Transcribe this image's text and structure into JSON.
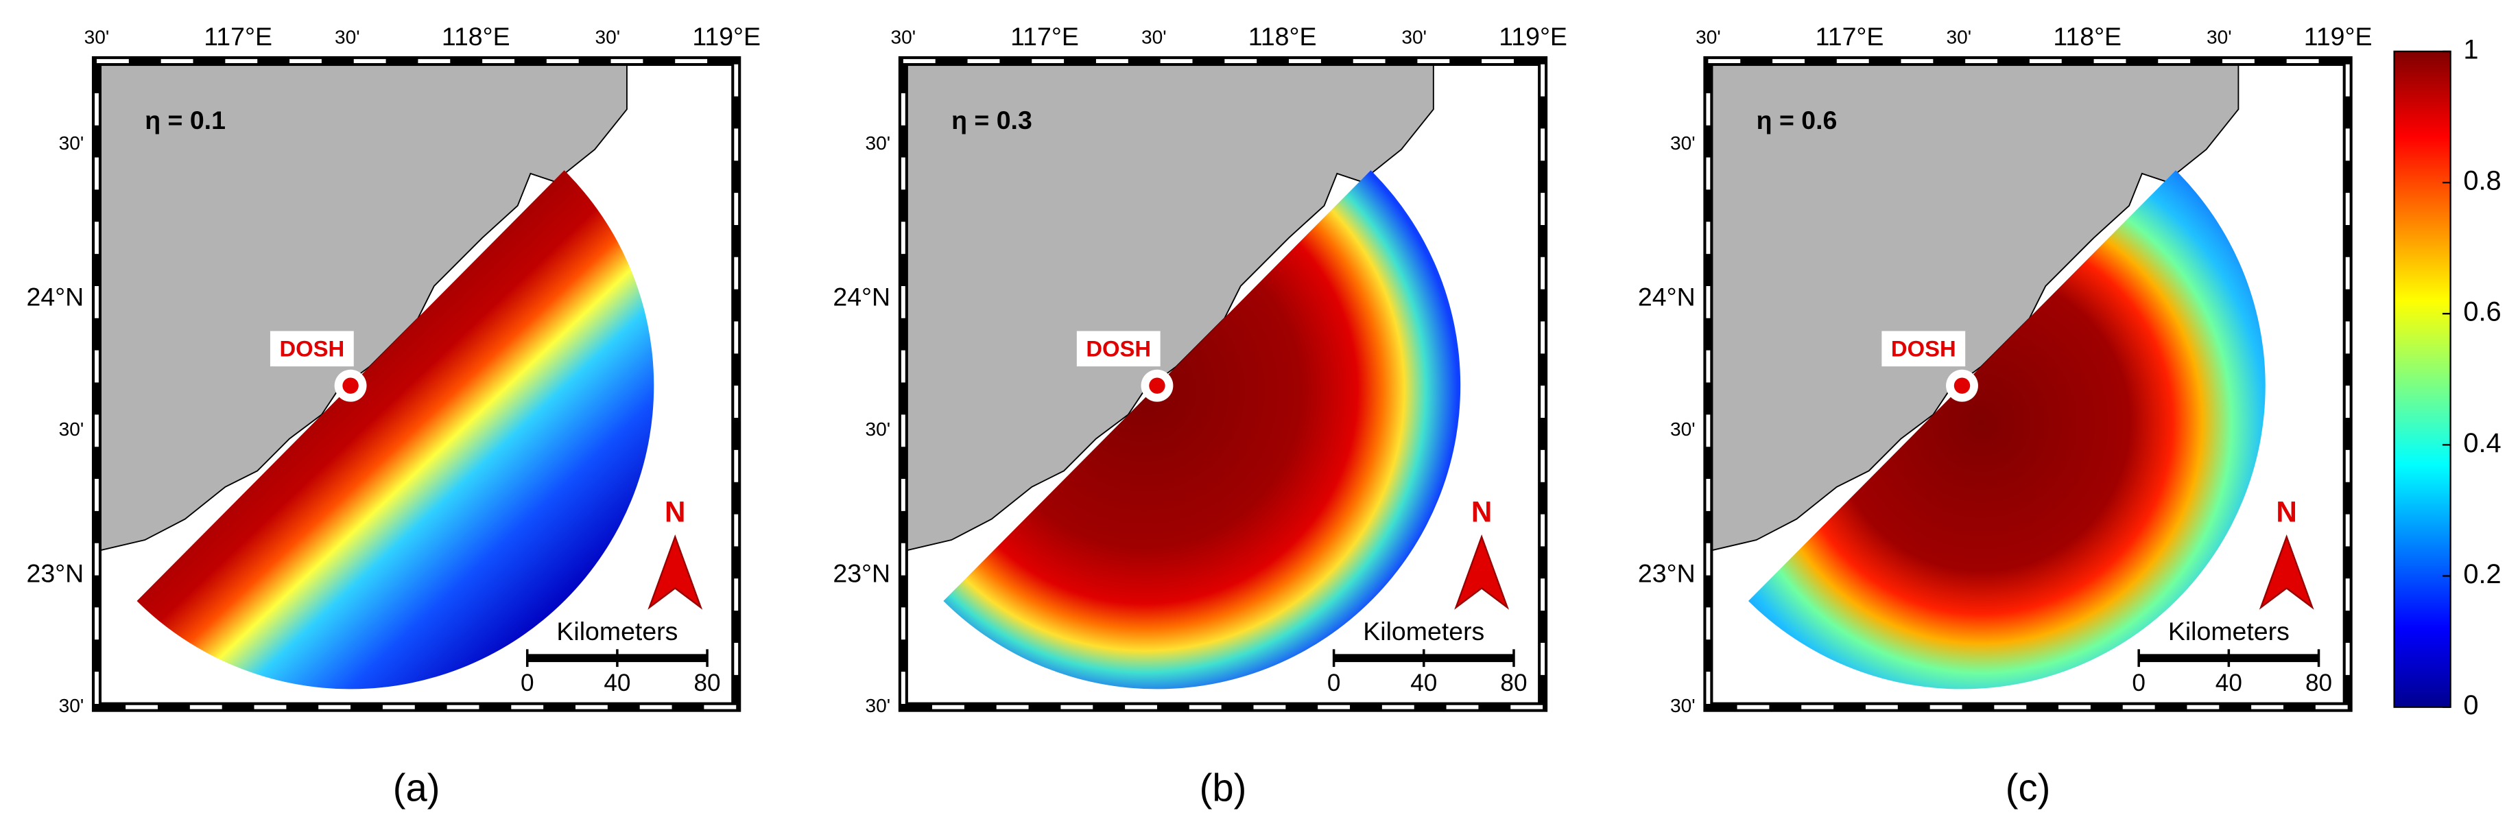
{
  "map": {
    "panels": [
      {
        "label": "(a)",
        "annotation": "η = 0.1"
      },
      {
        "label": "(b)",
        "annotation": "η = 0.3"
      },
      {
        "label": "(c)",
        "annotation": "η = 0.6"
      }
    ],
    "station": "DOSH",
    "north": "N",
    "scale_bar": {
      "title": "Kilometers",
      "lim": [
        0,
        80
      ],
      "ticks": [
        0,
        40,
        80
      ]
    },
    "lon_labels": [
      "30'",
      "117°E",
      "30'",
      "118°E",
      "30'",
      "119°E"
    ],
    "lat_labels": [
      "30'",
      "24°N",
      "30'",
      "23°N",
      "30'"
    ],
    "colorbar": {
      "lim": [
        0,
        1
      ],
      "ticks": [
        0,
        0.2,
        0.4,
        0.6,
        0.8,
        1
      ]
    }
  }
}
